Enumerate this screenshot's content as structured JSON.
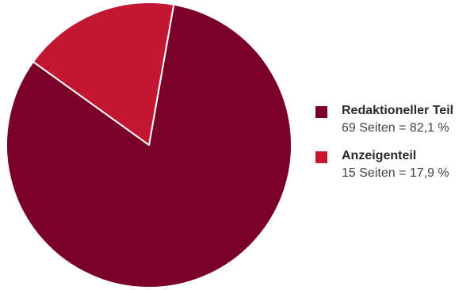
{
  "chart_data": {
    "type": "pie",
    "title": "",
    "slices": [
      {
        "name": "Redaktioneller Teil",
        "value": 69,
        "percent": 82.1,
        "label": "69 Seiten = 82,1 %",
        "color": "#7a0029"
      },
      {
        "name": "Anzeigenteil",
        "value": 15,
        "percent": 17.9,
        "label": "15 Seiten = 17,9 %",
        "color": "#c21632"
      }
    ],
    "legend_position": "right",
    "start_angle_deg": -80,
    "slice_border_color": "#ffffff"
  }
}
